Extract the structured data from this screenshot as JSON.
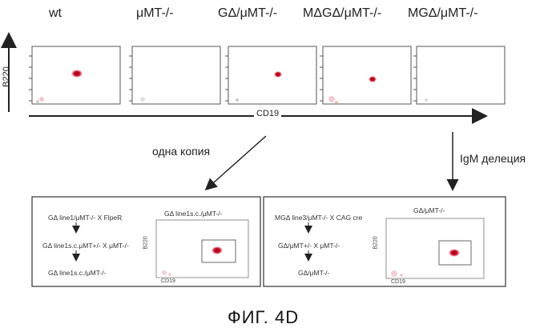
{
  "genotypes": [
    "wt",
    "μMT-/-",
    "GΔ/μMT-/-",
    "MΔGΔ/μMT-/-",
    "MGΔ/μMT-/-"
  ],
  "axes": {
    "y_label": "B220",
    "x_label": "CD19"
  },
  "arrows": {
    "left_label": "одна копия",
    "right_label": "IgM делеция"
  },
  "left_panel": {
    "steps": [
      "GΔ line1/μMT-/- X FlpeR",
      "GΔ line1s.c.μMT+/- X μMT-/-",
      "GΔ line1s.c./μMT-/-"
    ],
    "plot_title": "GΔ line1s.c./μMT-/-",
    "plot_y_label": "B220",
    "plot_x_label": "CD19"
  },
  "right_panel": {
    "steps": [
      "MGΔ line3/μMT-/- X CAG cre",
      "GΔ/μMT+/- X μMT-/-",
      "GΔ/μMT-/-"
    ],
    "plot_title": "GΔ/μMT-/-",
    "plot_y_label": "B220",
    "plot_x_label": "CD19"
  },
  "figure_label": "ФИГ. 4D",
  "colors": {
    "population": "#d0102a",
    "noise": "#e7a0ad",
    "line": "#333333"
  }
}
